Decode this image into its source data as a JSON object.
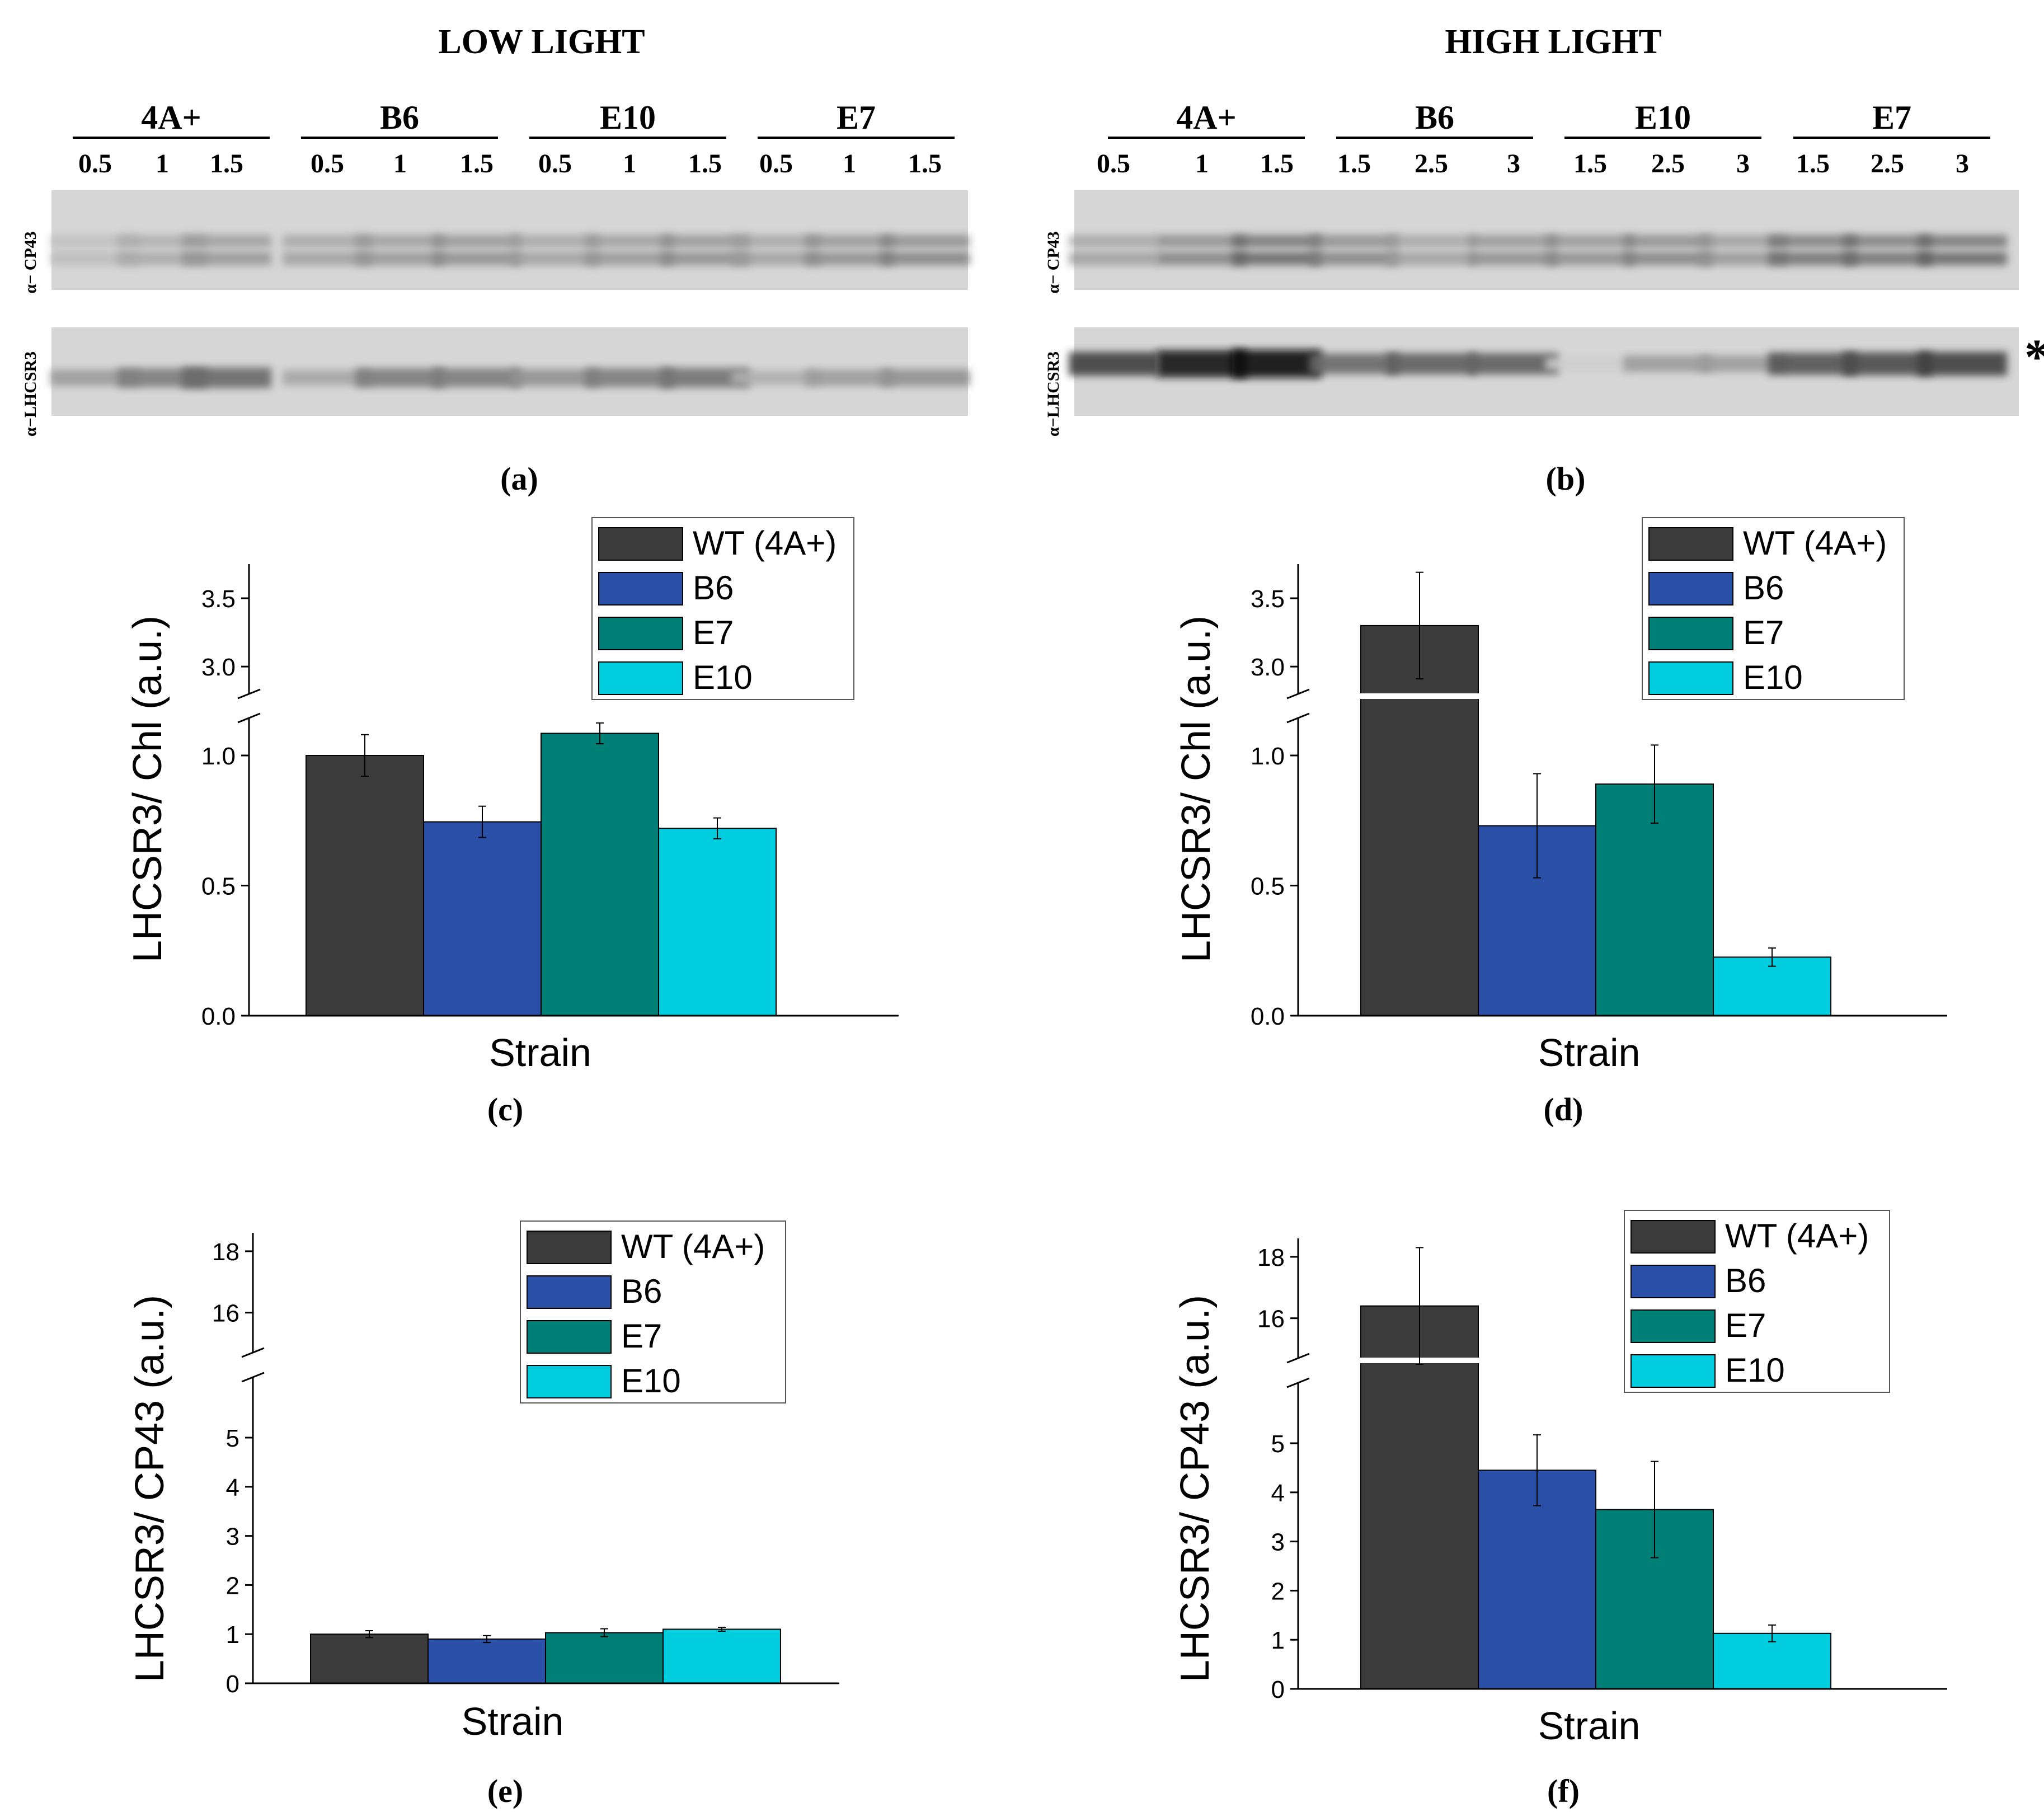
{
  "colors": {
    "wt": "#3b3b3b",
    "b6": "#2a4fa6",
    "e7": "#007f77",
    "e10": "#00cddd",
    "axis": "#000000",
    "blot_bg": "#d6d6d6"
  },
  "blots": [
    {
      "id": "a",
      "title": "LOW LIGHT",
      "label": "(a)",
      "groups": [
        {
          "name": "4A+",
          "lanes": [
            "0.5",
            "1",
            "1.5"
          ]
        },
        {
          "name": "B6",
          "lanes": [
            "0.5",
            "1",
            "1.5"
          ]
        },
        {
          "name": "E10",
          "lanes": [
            "0.5",
            "1",
            "1.5"
          ]
        },
        {
          "name": "E7",
          "lanes": [
            "0.5",
            "1",
            "1.5"
          ]
        }
      ],
      "rows": [
        {
          "label": "α− CP43",
          "intensities": [
            0.15,
            0.25,
            0.35,
            0.3,
            0.35,
            0.4,
            0.3,
            0.35,
            0.4,
            0.3,
            0.4,
            0.45
          ]
        },
        {
          "label": "α−LHCSR3",
          "intensities": [
            0.3,
            0.45,
            0.55,
            0.25,
            0.45,
            0.45,
            0.35,
            0.45,
            0.5,
            0.2,
            0.3,
            0.35
          ]
        }
      ],
      "marker": ""
    },
    {
      "id": "b",
      "title": "HIGH LIGHT",
      "label": "(b)",
      "groups": [
        {
          "name": "4A+",
          "lanes": [
            "0.5",
            "1",
            "1.5"
          ]
        },
        {
          "name": "B6",
          "lanes": [
            "1.5",
            "2.5",
            "3"
          ]
        },
        {
          "name": "E10",
          "lanes": [
            "1.5",
            "2.5",
            "3"
          ]
        },
        {
          "name": "E7",
          "lanes": [
            "1.5",
            "2.5",
            "3"
          ]
        }
      ],
      "rows": [
        {
          "label": "α− CP43",
          "intensities": [
            0.3,
            0.45,
            0.6,
            0.45,
            0.3,
            0.4,
            0.4,
            0.45,
            0.35,
            0.55,
            0.55,
            0.6
          ]
        },
        {
          "label": "α−LHCSR3",
          "intensities": [
            0.75,
            0.95,
            1.0,
            0.55,
            0.6,
            0.6,
            0.05,
            0.3,
            0.3,
            0.65,
            0.7,
            0.75
          ]
        }
      ],
      "marker": "*"
    }
  ],
  "chart_data": [
    {
      "id": "c",
      "type": "bar",
      "label": "(c)",
      "ylabel": "LHCSR3/ Chl (a.u.)",
      "xlabel": "Strain",
      "y_break": {
        "lower": [
          0,
          1.2
        ],
        "upper": [
          2.8,
          3.75
        ]
      },
      "yticks_lower": [
        "0.0",
        "0.5",
        "1.0"
      ],
      "yticks_upper": [
        "3.0",
        "3.5"
      ],
      "series": [
        {
          "name": "WT (4A+)",
          "value": 1.0,
          "error": 0.08
        },
        {
          "name": "B6",
          "value": 0.745,
          "error": 0.06
        },
        {
          "name": "E7",
          "value": 1.085,
          "error": 0.04
        },
        {
          "name": "E10",
          "value": 0.72,
          "error": 0.04
        }
      ],
      "legend": [
        "WT (4A+)",
        "B6",
        "E7",
        "E10"
      ]
    },
    {
      "id": "d",
      "type": "bar",
      "label": "(d)",
      "ylabel": "LHCSR3/ Chl (a.u.)",
      "xlabel": "Strain",
      "y_break": {
        "lower": [
          0,
          1.2
        ],
        "upper": [
          2.8,
          3.75
        ]
      },
      "yticks_lower": [
        "0.0",
        "0.5",
        "1.0"
      ],
      "yticks_upper": [
        "3.0",
        "3.5"
      ],
      "series": [
        {
          "name": "WT (4A+)",
          "value": 3.3,
          "error": 0.39
        },
        {
          "name": "B6",
          "value": 0.73,
          "error": 0.2
        },
        {
          "name": "E7",
          "value": 0.89,
          "error": 0.15
        },
        {
          "name": "E10",
          "value": 0.225,
          "error": 0.035
        }
      ],
      "legend": [
        "WT (4A+)",
        "B6",
        "E7",
        "E10"
      ]
    },
    {
      "id": "e",
      "type": "bar",
      "label": "(e)",
      "ylabel": "LHCSR3/ CP43 (a.u.)",
      "xlabel": "Strain",
      "y_break": {
        "lower": [
          0,
          5.9
        ],
        "upper": [
          14.7,
          18.6
        ]
      },
      "yticks_lower": [
        "0",
        "1",
        "2",
        "3",
        "4",
        "5"
      ],
      "yticks_upper": [
        "16",
        "18"
      ],
      "series": [
        {
          "name": "WT (4A+)",
          "value": 1.0,
          "error": 0.07
        },
        {
          "name": "B6",
          "value": 0.9,
          "error": 0.07
        },
        {
          "name": "E7",
          "value": 1.03,
          "error": 0.08
        },
        {
          "name": "E10",
          "value": 1.1,
          "error": 0.04
        }
      ],
      "legend": [
        "WT (4A+)",
        "B6",
        "E7",
        "E10"
      ]
    },
    {
      "id": "f",
      "type": "bar",
      "label": "(f)",
      "ylabel": "LHCSR3/ CP43 (a.u.)",
      "xlabel": "Strain",
      "y_break": {
        "lower": [
          0,
          5.9
        ],
        "upper": [
          14.7,
          18.6
        ]
      },
      "yticks_lower": [
        "0",
        "1",
        "2",
        "3",
        "4",
        "5"
      ],
      "yticks_upper": [
        "16",
        "18"
      ],
      "series": [
        {
          "name": "WT (4A+)",
          "value": 16.4,
          "error": 1.9
        },
        {
          "name": "B6",
          "value": 4.45,
          "error": 0.72
        },
        {
          "name": "E7",
          "value": 3.65,
          "error": 0.98
        },
        {
          "name": "E10",
          "value": 1.13,
          "error": 0.17
        }
      ],
      "legend": [
        "WT (4A+)",
        "B6",
        "E7",
        "E10"
      ]
    }
  ]
}
